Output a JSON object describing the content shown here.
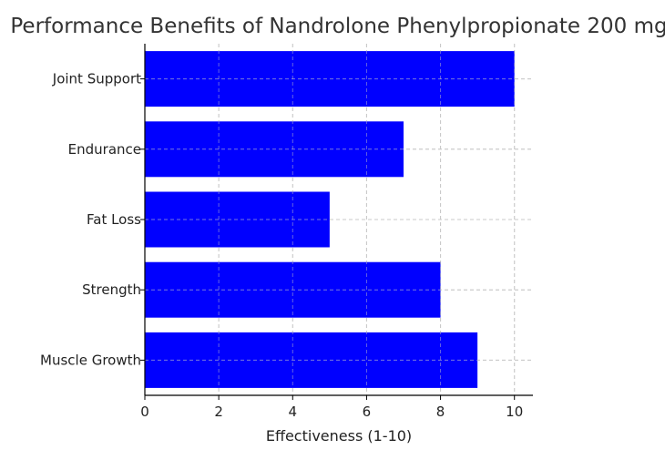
{
  "chart_data": {
    "type": "bar",
    "orientation": "horizontal",
    "title": "Performance Benefits of Nandrolone Phenylpropionate 200 mg",
    "xlabel": "Effectiveness (1-10)",
    "ylabel": "",
    "categories": [
      "Muscle Growth",
      "Strength",
      "Fat Loss",
      "Endurance",
      "Joint Support"
    ],
    "values": [
      9,
      8,
      5,
      7,
      10
    ],
    "xlim": [
      0,
      10.5
    ],
    "xticks": [
      0,
      2,
      4,
      6,
      8,
      10
    ],
    "bar_color": "#0000ff",
    "grid": true
  }
}
